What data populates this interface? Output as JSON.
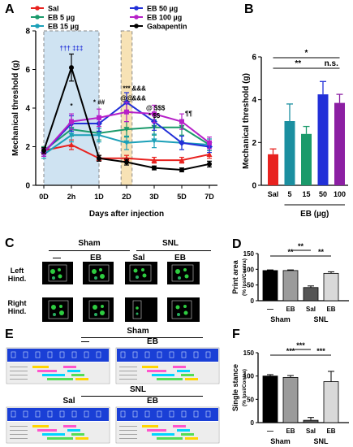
{
  "panels": {
    "A": "A",
    "B": "B",
    "C": "C",
    "D": "D",
    "E": "E",
    "F": "F"
  },
  "chart_data": [
    {
      "id": "A",
      "type": "line",
      "xlabel": "Days after injection",
      "ylabel": "Mechanical threshold (g)",
      "x": [
        "0D",
        "2h",
        "1D",
        "2D",
        "3D",
        "5D",
        "7D"
      ],
      "ylim": [
        0,
        8
      ],
      "yticks": [
        0,
        2,
        4,
        6,
        8
      ],
      "shaded_regions": [
        {
          "from_index": 0,
          "to_index": 2,
          "color": "#cfe3f2"
        },
        {
          "from_index": 2.8,
          "to_index": 3.2,
          "color": "#f7e2b5"
        }
      ],
      "series": [
        {
          "name": "Sal",
          "color": "#e8221f",
          "values": [
            1.8,
            2.1,
            1.4,
            1.4,
            1.3,
            1.3,
            1.6
          ],
          "errors": [
            0.2,
            0.25,
            0.15,
            0.15,
            0.15,
            0.15,
            0.2
          ]
        },
        {
          "name": "EB 5 µg",
          "color": "#1b9a6b",
          "values": [
            1.8,
            2.9,
            2.7,
            2.9,
            3.0,
            3.0,
            2.1
          ],
          "errors": [
            0.2,
            0.35,
            0.35,
            0.4,
            0.4,
            0.4,
            0.3
          ]
        },
        {
          "name": "EB 15 µg",
          "color": "#1ba0b8",
          "values": [
            1.6,
            2.6,
            2.6,
            2.2,
            2.3,
            2.2,
            2.1
          ],
          "errors": [
            0.2,
            0.35,
            0.35,
            0.35,
            0.35,
            0.35,
            0.3
          ]
        },
        {
          "name": "EB 50 µg",
          "color": "#2230d8",
          "values": [
            1.7,
            3.2,
            3.2,
            4.3,
            3.3,
            2.2,
            2.0
          ],
          "errors": [
            0.2,
            0.4,
            0.4,
            0.5,
            0.45,
            0.35,
            0.3
          ]
        },
        {
          "name": "EB 100 µg",
          "color": "#b620c8",
          "values": [
            1.7,
            3.3,
            3.5,
            3.8,
            3.7,
            3.3,
            2.2
          ],
          "errors": [
            0.2,
            0.4,
            0.45,
            0.5,
            0.45,
            0.4,
            0.3
          ]
        },
        {
          "name": "Gabapentin",
          "color": "#000000",
          "values": [
            1.8,
            6.1,
            1.4,
            1.2,
            0.9,
            0.8,
            1.1
          ],
          "errors": [
            0.15,
            0.7,
            0.15,
            0.15,
            0.1,
            0.1,
            0.15
          ]
        }
      ],
      "annotations": [
        {
          "text": "††† ‡‡‡",
          "x_index": 1,
          "y": 7.0,
          "color": "#2230d8"
        },
        {
          "text": "*",
          "x_index": 1,
          "y": 4.0,
          "color": "#000000"
        },
        {
          "text": "* ##",
          "x_index": 2,
          "y": 4.2,
          "color": "#000000"
        },
        {
          "text": "***",
          "x_index": 3,
          "y": 4.9,
          "color": "#000000"
        },
        {
          "text": "&&&",
          "x_index": 3.45,
          "y": 4.9,
          "color": "#000000"
        },
        {
          "text": "@@",
          "x_index": 3,
          "y": 4.4,
          "color": "#000000"
        },
        {
          "text": "&&&",
          "x_index": 3.45,
          "y": 4.4,
          "color": "#000000"
        },
        {
          "text": "@ $$$",
          "x_index": 4.05,
          "y": 3.9,
          "color": "#000000"
        },
        {
          "text": "* $$",
          "x_index": 4,
          "y": 3.5,
          "color": "#000000"
        },
        {
          "text": "¶¶",
          "x_index": 5.25,
          "y": 3.6,
          "color": "#000000"
        }
      ]
    },
    {
      "id": "B",
      "type": "bar",
      "ylabel": "Mechanical threshold (g)",
      "categories": [
        "Sal",
        "5",
        "15",
        "50",
        "100"
      ],
      "values": [
        1.45,
        3.0,
        2.4,
        4.25,
        3.85
      ],
      "errors": [
        0.25,
        0.8,
        0.35,
        0.6,
        0.4
      ],
      "colors": [
        "#e8221f",
        "#1b8fa0",
        "#1b9a6b",
        "#2230d8",
        "#8c1fa3"
      ],
      "ylim": [
        0,
        6
      ],
      "yticks": [
        0,
        2,
        4,
        6
      ],
      "group_label": "EB (µg)",
      "significance": [
        {
          "from": 0,
          "to": 4,
          "label": "*"
        },
        {
          "from": 0,
          "to": 3,
          "label": "**"
        },
        {
          "from": 3,
          "to": 4,
          "label": "n.s."
        }
      ]
    },
    {
      "id": "D",
      "type": "bar",
      "ylabel": "Print area",
      "ylabel_unit": "(% Ipsi/Contra)",
      "categories": [
        "—",
        "EB",
        "Sal",
        "EB"
      ],
      "values": [
        96,
        96,
        42,
        87
      ],
      "errors": [
        2,
        2,
        5,
        5
      ],
      "colors": [
        "#000000",
        "#9b9b9b",
        "#555555",
        "#d9d9d9"
      ],
      "ylim": [
        0,
        150
      ],
      "yticks": [
        0,
        50,
        100,
        150
      ],
      "groups": [
        "Sham",
        "SNL"
      ],
      "significance": [
        {
          "from": 0,
          "to": 2,
          "label": "**"
        },
        {
          "from": 1,
          "to": 2,
          "label": "**"
        },
        {
          "from": 2,
          "to": 3,
          "label": "**"
        }
      ]
    },
    {
      "id": "F",
      "type": "bar",
      "ylabel": "Single stance",
      "ylabel_unit": "(% Ipsi/Contra)",
      "categories": [
        "—",
        "EB",
        "Sal",
        "EB"
      ],
      "values": [
        100,
        97,
        5,
        88
      ],
      "errors": [
        3,
        4,
        6,
        22
      ],
      "colors": [
        "#000000",
        "#9b9b9b",
        "#555555",
        "#d9d9d9"
      ],
      "ylim": [
        0,
        150
      ],
      "yticks": [
        0,
        50,
        100,
        150
      ],
      "groups": [
        "Sham",
        "SNL"
      ],
      "significance": [
        {
          "from": 0,
          "to": 2,
          "label": "***"
        },
        {
          "from": 1,
          "to": 2,
          "label": "***"
        },
        {
          "from": 2,
          "to": 3,
          "label": "***"
        }
      ]
    }
  ],
  "panelC": {
    "groups": [
      {
        "label": "Sham",
        "cols": [
          "—",
          "EB"
        ]
      },
      {
        "label": "SNL",
        "cols": [
          "Sal",
          "EB"
        ]
      }
    ],
    "rows": [
      "Left Hind.",
      "Right Hind."
    ]
  },
  "panelE": {
    "top": {
      "label": "Sham",
      "cols": [
        "—",
        "EB"
      ]
    },
    "bottom": {
      "label": "SNL",
      "cols": [
        "Sal",
        "EB"
      ]
    }
  }
}
